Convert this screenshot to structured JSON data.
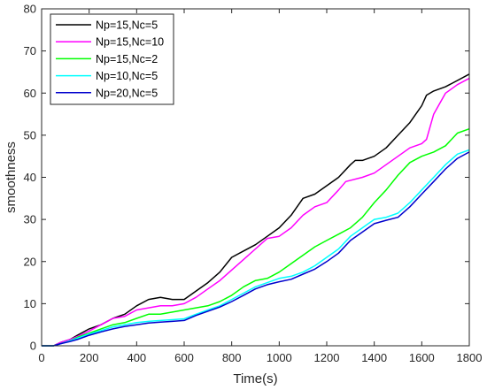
{
  "chart_data": {
    "type": "line",
    "title": "",
    "xlabel": "Time(s)",
    "ylabel": "smoothness",
    "xlim": [
      0,
      1800
    ],
    "ylim": [
      0,
      80
    ],
    "xticks": [
      0,
      200,
      400,
      600,
      800,
      1000,
      1200,
      1400,
      1600,
      1800
    ],
    "yticks": [
      0,
      10,
      20,
      30,
      40,
      50,
      60,
      70,
      80
    ],
    "grid": false,
    "legend_position": "top-left",
    "series": [
      {
        "name": "Np=15,Nc=5",
        "color": "#000000",
        "points": [
          [
            0,
            0
          ],
          [
            50,
            0
          ],
          [
            80,
            0.8
          ],
          [
            120,
            1.5
          ],
          [
            150,
            2.5
          ],
          [
            200,
            4
          ],
          [
            250,
            5
          ],
          [
            300,
            6.5
          ],
          [
            350,
            7.5
          ],
          [
            400,
            9.5
          ],
          [
            450,
            11
          ],
          [
            500,
            11.5
          ],
          [
            550,
            11
          ],
          [
            600,
            11
          ],
          [
            650,
            13
          ],
          [
            700,
            15
          ],
          [
            750,
            17.5
          ],
          [
            800,
            21
          ],
          [
            850,
            22.5
          ],
          [
            900,
            24
          ],
          [
            950,
            26
          ],
          [
            1000,
            28
          ],
          [
            1050,
            31
          ],
          [
            1100,
            35
          ],
          [
            1150,
            36
          ],
          [
            1200,
            38
          ],
          [
            1250,
            40
          ],
          [
            1300,
            43
          ],
          [
            1320,
            44
          ],
          [
            1350,
            44
          ],
          [
            1400,
            45
          ],
          [
            1450,
            47
          ],
          [
            1500,
            50
          ],
          [
            1550,
            53
          ],
          [
            1600,
            57
          ],
          [
            1620,
            59.5
          ],
          [
            1650,
            60.5
          ],
          [
            1700,
            61.5
          ],
          [
            1750,
            63
          ],
          [
            1800,
            64.5
          ]
        ]
      },
      {
        "name": "Np=15,Nc=10",
        "color": "#ff00ff",
        "points": [
          [
            0,
            0
          ],
          [
            50,
            0
          ],
          [
            80,
            0.8
          ],
          [
            120,
            1.5
          ],
          [
            150,
            2.2
          ],
          [
            200,
            3.5
          ],
          [
            250,
            5
          ],
          [
            300,
            6.5
          ],
          [
            350,
            7
          ],
          [
            400,
            8.5
          ],
          [
            450,
            9
          ],
          [
            500,
            9.5
          ],
          [
            550,
            9.5
          ],
          [
            600,
            10
          ],
          [
            650,
            11.5
          ],
          [
            700,
            13.5
          ],
          [
            750,
            15.5
          ],
          [
            800,
            18
          ],
          [
            850,
            20.5
          ],
          [
            900,
            23
          ],
          [
            950,
            25.5
          ],
          [
            1000,
            26
          ],
          [
            1050,
            28
          ],
          [
            1100,
            31
          ],
          [
            1150,
            33
          ],
          [
            1200,
            34
          ],
          [
            1250,
            37
          ],
          [
            1280,
            39
          ],
          [
            1350,
            40
          ],
          [
            1400,
            41
          ],
          [
            1450,
            43
          ],
          [
            1500,
            45
          ],
          [
            1550,
            47
          ],
          [
            1600,
            48
          ],
          [
            1620,
            49
          ],
          [
            1650,
            55
          ],
          [
            1700,
            60
          ],
          [
            1750,
            62
          ],
          [
            1800,
            63.5
          ]
        ]
      },
      {
        "name": "Np=15,Nc=2",
        "color": "#00ff00",
        "points": [
          [
            0,
            0
          ],
          [
            50,
            0
          ],
          [
            80,
            0.5
          ],
          [
            120,
            1.2
          ],
          [
            150,
            2
          ],
          [
            200,
            3
          ],
          [
            250,
            4
          ],
          [
            300,
            5
          ],
          [
            350,
            5.5
          ],
          [
            400,
            6.5
          ],
          [
            450,
            7.5
          ],
          [
            500,
            7.5
          ],
          [
            550,
            8
          ],
          [
            600,
            8.5
          ],
          [
            650,
            9
          ],
          [
            700,
            9.5
          ],
          [
            750,
            10.5
          ],
          [
            800,
            12
          ],
          [
            850,
            14
          ],
          [
            900,
            15.5
          ],
          [
            950,
            16
          ],
          [
            1000,
            17.5
          ],
          [
            1050,
            19.5
          ],
          [
            1100,
            21.5
          ],
          [
            1150,
            23.5
          ],
          [
            1200,
            25
          ],
          [
            1250,
            26.5
          ],
          [
            1300,
            28
          ],
          [
            1350,
            30.5
          ],
          [
            1400,
            34
          ],
          [
            1450,
            37
          ],
          [
            1500,
            40.5
          ],
          [
            1550,
            43.5
          ],
          [
            1600,
            45
          ],
          [
            1650,
            46
          ],
          [
            1700,
            47.5
          ],
          [
            1750,
            50.5
          ],
          [
            1800,
            51.5
          ]
        ]
      },
      {
        "name": "Np=10,Nc=5",
        "color": "#00ffff",
        "points": [
          [
            0,
            0
          ],
          [
            50,
            0
          ],
          [
            80,
            0.5
          ],
          [
            120,
            1.2
          ],
          [
            150,
            1.8
          ],
          [
            200,
            2.8
          ],
          [
            250,
            3.6
          ],
          [
            300,
            4.5
          ],
          [
            350,
            5
          ],
          [
            400,
            5.5
          ],
          [
            450,
            5.8
          ],
          [
            500,
            6
          ],
          [
            550,
            6.2
          ],
          [
            600,
            6.4
          ],
          [
            650,
            7.5
          ],
          [
            700,
            8.5
          ],
          [
            750,
            9.5
          ],
          [
            800,
            11
          ],
          [
            850,
            12.5
          ],
          [
            900,
            14
          ],
          [
            950,
            15
          ],
          [
            1000,
            16
          ],
          [
            1050,
            16.5
          ],
          [
            1100,
            17.5
          ],
          [
            1150,
            19
          ],
          [
            1200,
            21
          ],
          [
            1250,
            23
          ],
          [
            1300,
            26
          ],
          [
            1350,
            28
          ],
          [
            1400,
            30
          ],
          [
            1450,
            30.5
          ],
          [
            1500,
            31.5
          ],
          [
            1550,
            34
          ],
          [
            1600,
            37
          ],
          [
            1650,
            40
          ],
          [
            1700,
            43
          ],
          [
            1750,
            45.5
          ],
          [
            1800,
            46.5
          ]
        ]
      },
      {
        "name": "Np=20,Nc=5",
        "color": "#0000cc",
        "points": [
          [
            0,
            0
          ],
          [
            50,
            0
          ],
          [
            80,
            0.5
          ],
          [
            120,
            1
          ],
          [
            150,
            1.5
          ],
          [
            200,
            2.5
          ],
          [
            250,
            3.3
          ],
          [
            300,
            4
          ],
          [
            350,
            4.6
          ],
          [
            400,
            5
          ],
          [
            450,
            5.4
          ],
          [
            500,
            5.6
          ],
          [
            550,
            5.8
          ],
          [
            600,
            6
          ],
          [
            650,
            7.2
          ],
          [
            700,
            8.2
          ],
          [
            750,
            9.2
          ],
          [
            800,
            10.5
          ],
          [
            850,
            12
          ],
          [
            900,
            13.5
          ],
          [
            950,
            14.5
          ],
          [
            1000,
            15.2
          ],
          [
            1050,
            15.8
          ],
          [
            1100,
            17
          ],
          [
            1150,
            18.2
          ],
          [
            1200,
            20
          ],
          [
            1250,
            22
          ],
          [
            1300,
            25
          ],
          [
            1350,
            27
          ],
          [
            1400,
            29
          ],
          [
            1450,
            29.8
          ],
          [
            1500,
            30.5
          ],
          [
            1550,
            33
          ],
          [
            1600,
            36
          ],
          [
            1650,
            39
          ],
          [
            1700,
            42
          ],
          [
            1750,
            44.5
          ],
          [
            1800,
            46
          ]
        ]
      }
    ]
  }
}
